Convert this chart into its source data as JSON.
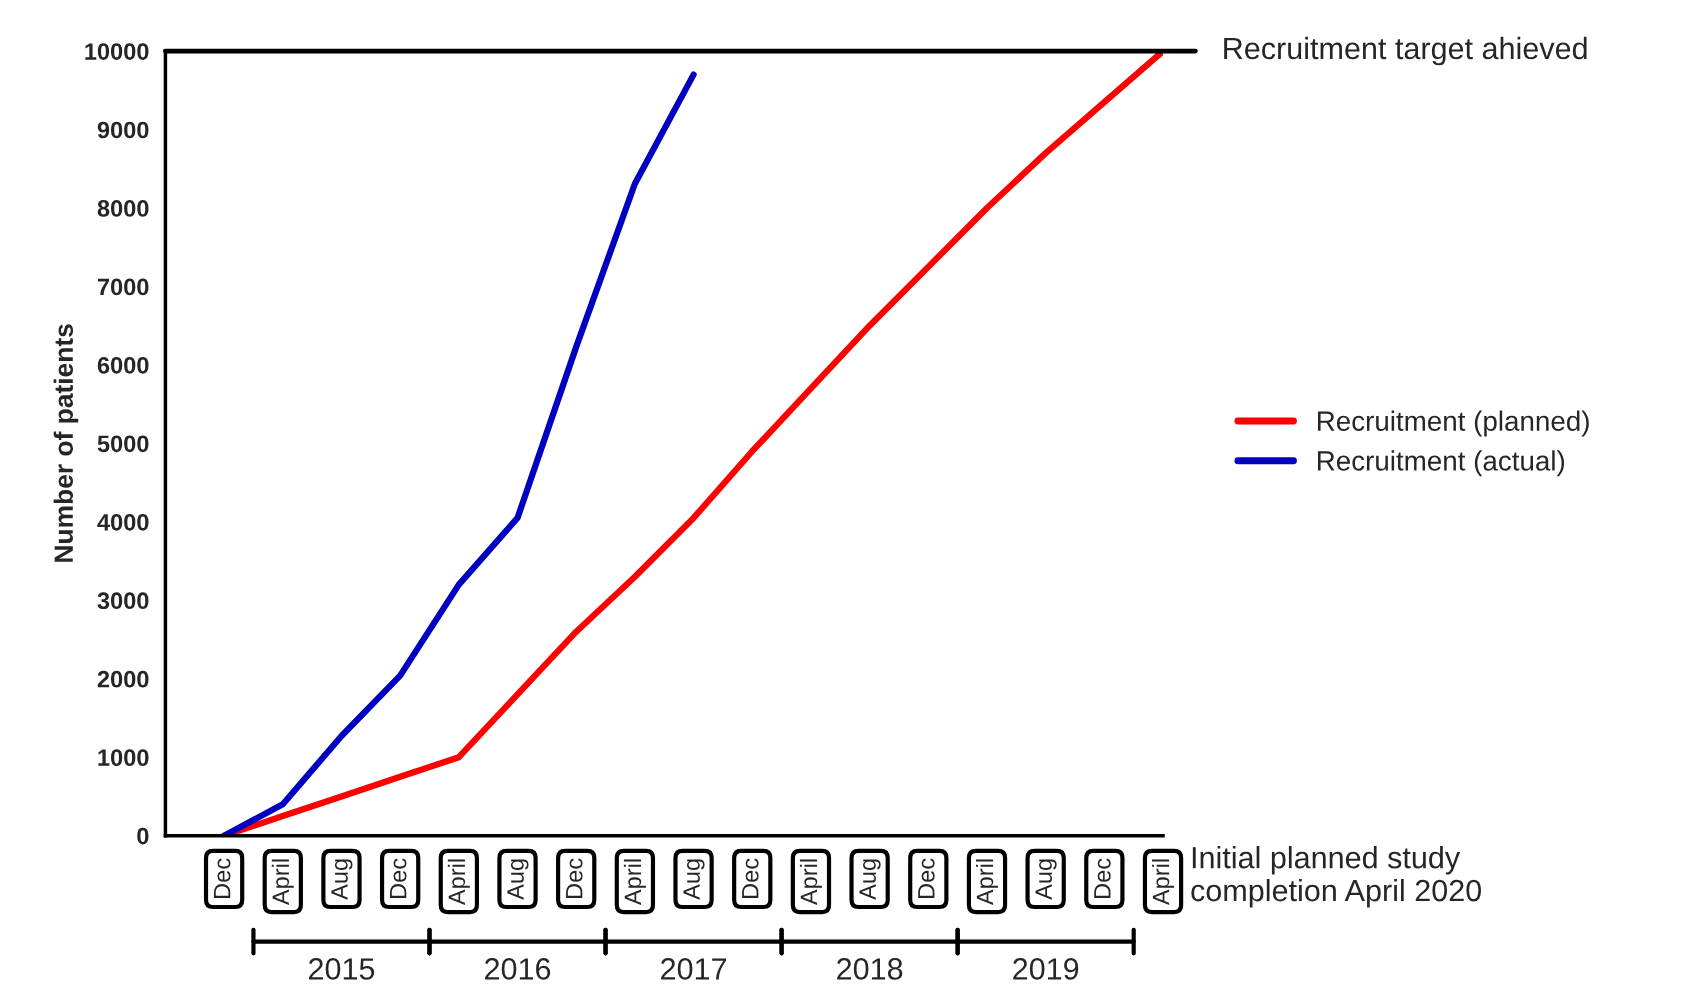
{
  "chart_data": {
    "type": "line",
    "ylabel": "Number of patients",
    "categories": [
      "Dec",
      "April",
      "Aug",
      "Dec",
      "April",
      "Aug",
      "Dec",
      "April",
      "Aug",
      "Dec",
      "April",
      "Aug",
      "Dec",
      "April",
      "Aug",
      "Dec",
      "April"
    ],
    "series": [
      {
        "name": "Recruitment (planned)",
        "color": "#ff0000",
        "values": [
          0,
          250,
          500,
          750,
          1000,
          1800,
          2600,
          3300,
          4050,
          4900,
          5700,
          6500,
          7250,
          8000,
          8700,
          9350,
          10000
        ]
      },
      {
        "name": "Recruitment (actual)",
        "color": "#0000c0",
        "values": [
          0,
          400,
          1270,
          2040,
          3200,
          4050,
          6230,
          8310,
          9700,
          null,
          null,
          null,
          null,
          null,
          null,
          null,
          null
        ]
      }
    ],
    "ylim": [
      0,
      10000
    ],
    "yticks": [
      0,
      1000,
      2000,
      3000,
      4000,
      5000,
      6000,
      7000,
      8000,
      9000,
      10000
    ],
    "ref_lines": [
      {
        "axis": "y",
        "value": 10000,
        "label": "Recruitment target ahieved",
        "color": "#000000"
      }
    ],
    "annotations": [
      "Initial planned study completion April 2020",
      "2015",
      "2016",
      "2017",
      "2018",
      "2019"
    ],
    "legend": "right",
    "grid": false,
    "marker": "none",
    "line_style": "solid"
  }
}
